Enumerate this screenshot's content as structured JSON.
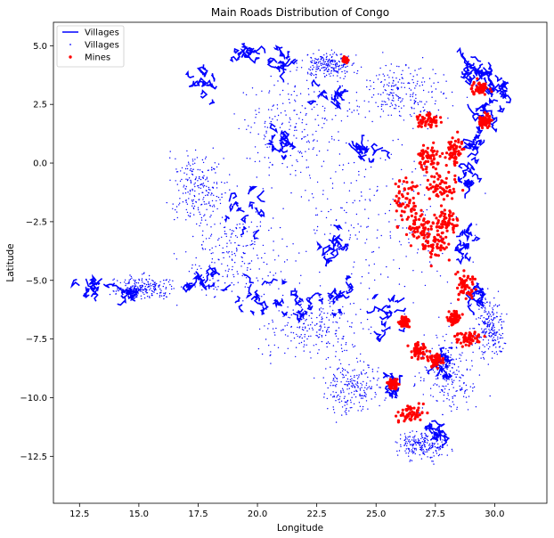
{
  "chart_data": {
    "type": "scatter",
    "title": "Main Roads Distribution of Congo",
    "xlabel": "Longitude",
    "ylabel": "Latitude",
    "xlim": [
      11.4,
      32.2
    ],
    "ylim": [
      -14.5,
      6.0
    ],
    "xticks": [
      12.5,
      15.0,
      17.5,
      20.0,
      22.5,
      25.0,
      27.5,
      30.0
    ],
    "xtick_labels": [
      "12.5",
      "15.0",
      "17.5",
      "20.0",
      "22.5",
      "25.0",
      "27.5",
      "30.0"
    ],
    "yticks": [
      5.0,
      2.5,
      0.0,
      -2.5,
      -5.0,
      -7.5,
      -10.0,
      -12.5
    ],
    "ytick_labels": [
      "5.0",
      "2.5",
      "0.0",
      "−2.5",
      "−5.0",
      "−7.5",
      "−10.0",
      "−12.5"
    ],
    "grid": false,
    "legend_position": "top-left",
    "legend": [
      {
        "label": "Villages",
        "marker": "line",
        "color": "#0000ff"
      },
      {
        "label": "Villages",
        "marker": "dot",
        "color": "#0000ff"
      },
      {
        "label": "Mines",
        "marker": "dot",
        "color": "#ff0000"
      }
    ],
    "series": [
      {
        "name": "Villages",
        "kind": "line",
        "color": "#0000ff",
        "clusters": [
          [
            30.2,
            3.0,
            0.45,
            0.6
          ],
          [
            29.6,
            3.8,
            0.4,
            0.45
          ],
          [
            29.1,
            1.2,
            0.35,
            0.7
          ],
          [
            28.9,
            -0.8,
            0.35,
            0.8
          ],
          [
            28.7,
            -3.2,
            0.35,
            1.0
          ],
          [
            29.2,
            -5.6,
            0.3,
            0.6
          ],
          [
            29.5,
            2.2,
            0.4,
            0.5
          ],
          [
            28.9,
            4.0,
            0.4,
            0.4
          ],
          [
            23.2,
            2.8,
            0.7,
            0.5
          ],
          [
            21.0,
            4.4,
            0.6,
            0.4
          ],
          [
            19.6,
            4.7,
            0.4,
            0.3
          ],
          [
            17.8,
            3.5,
            0.5,
            0.7
          ],
          [
            19.6,
            -1.8,
            0.8,
            0.9
          ],
          [
            19.8,
            -5.8,
            1.0,
            1.0
          ],
          [
            17.8,
            -5.0,
            0.6,
            0.5
          ],
          [
            14.6,
            -5.5,
            0.6,
            0.3
          ],
          [
            13.0,
            -5.3,
            0.8,
            0.2
          ],
          [
            21.6,
            -6.0,
            0.7,
            0.7
          ],
          [
            23.5,
            -5.8,
            0.8,
            0.8
          ],
          [
            25.5,
            -6.5,
            0.9,
            0.8
          ],
          [
            27.6,
            -11.5,
            0.3,
            0.3
          ],
          [
            25.8,
            -9.5,
            0.4,
            0.5
          ],
          [
            21.0,
            1.0,
            0.5,
            0.5
          ],
          [
            24.6,
            0.5,
            0.5,
            0.5
          ],
          [
            27.7,
            -8.5,
            0.6,
            0.6
          ],
          [
            23.4,
            -3.5,
            0.7,
            0.6
          ]
        ]
      },
      {
        "name": "Villages",
        "kind": "dot",
        "color": "#0000ff",
        "clusters": [
          [
            25.0,
            -2.5,
            4.0,
            3.2
          ],
          [
            21.5,
            1.5,
            2.5,
            2.2
          ],
          [
            19.0,
            -4.0,
            2.0,
            2.0
          ],
          [
            22.5,
            -7.0,
            2.2,
            1.2
          ],
          [
            26.0,
            3.0,
            2.0,
            1.2
          ],
          [
            17.5,
            -1.0,
            1.2,
            1.5
          ],
          [
            15.2,
            -5.3,
            1.2,
            0.5
          ],
          [
            28.0,
            -9.0,
            1.2,
            1.5
          ],
          [
            24.0,
            -9.5,
            1.2,
            1.2
          ],
          [
            27.0,
            -12.0,
            1.0,
            0.6
          ],
          [
            29.8,
            -7.0,
            0.6,
            1.2
          ],
          [
            23.0,
            4.2,
            1.0,
            0.5
          ]
        ]
      },
      {
        "name": "Mines",
        "kind": "dot",
        "color": "#ff0000",
        "clusters": [
          [
            26.3,
            -1.5,
            0.5,
            1.0
          ],
          [
            26.8,
            -2.8,
            0.6,
            0.8
          ],
          [
            27.5,
            -3.5,
            0.6,
            0.7
          ],
          [
            27.8,
            -1.0,
            0.6,
            0.6
          ],
          [
            27.2,
            0.2,
            0.5,
            0.6
          ],
          [
            28.3,
            0.5,
            0.4,
            0.6
          ],
          [
            28.0,
            -2.5,
            0.5,
            0.6
          ],
          [
            27.2,
            1.8,
            0.5,
            0.3
          ],
          [
            29.4,
            3.2,
            0.4,
            0.3
          ],
          [
            28.8,
            -5.2,
            0.4,
            0.6
          ],
          [
            28.9,
            -7.5,
            0.6,
            0.3
          ],
          [
            26.8,
            -8.0,
            0.3,
            0.3
          ],
          [
            27.5,
            -8.4,
            0.3,
            0.3
          ],
          [
            26.5,
            -10.7,
            0.6,
            0.3
          ],
          [
            25.7,
            -9.4,
            0.2,
            0.2
          ],
          [
            23.7,
            4.4,
            0.1,
            0.1
          ],
          [
            29.6,
            1.8,
            0.3,
            0.3
          ],
          [
            28.3,
            -6.6,
            0.3,
            0.3
          ],
          [
            26.2,
            -6.8,
            0.2,
            0.2
          ]
        ]
      }
    ]
  }
}
